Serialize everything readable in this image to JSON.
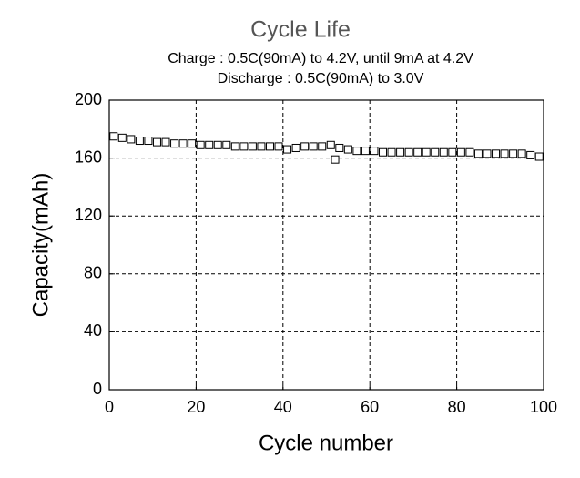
{
  "chart_data": {
    "type": "scatter",
    "title": "Cycle Life",
    "subtitle": [
      "Charge : 0.5C(90mA) to 4.2V, until 9mA at 4.2V",
      "Discharge : 0.5C(90mA) to 3.0V"
    ],
    "x_label": "Cycle number",
    "y_label": "Capacity(mAh)",
    "x": [
      1,
      3,
      5,
      7,
      9,
      11,
      13,
      15,
      17,
      19,
      21,
      23,
      25,
      27,
      29,
      31,
      33,
      35,
      37,
      39,
      41,
      43,
      45,
      47,
      49,
      51,
      52,
      53,
      55,
      57,
      59,
      61,
      63,
      65,
      67,
      69,
      71,
      73,
      75,
      77,
      79,
      81,
      83,
      85,
      87,
      89,
      91,
      93,
      95,
      97,
      99
    ],
    "y": [
      175,
      174,
      173,
      172,
      172,
      171,
      171,
      170,
      170,
      170,
      169,
      169,
      169,
      169,
      168,
      168,
      168,
      168,
      168,
      168,
      166,
      167,
      168,
      168,
      168,
      169,
      159,
      167,
      166,
      165,
      165,
      165,
      164,
      164,
      164,
      164,
      164,
      164,
      164,
      164,
      164,
      164,
      164,
      163,
      163,
      163,
      163,
      163,
      163,
      162,
      161
    ],
    "color": "#000000",
    "marker": "open-square",
    "xlim": [
      0,
      100
    ],
    "xticks": [
      0,
      20,
      40,
      60,
      80,
      100
    ],
    "ylim": [
      0,
      200
    ],
    "yticks": [
      0,
      40,
      80,
      120,
      160,
      200
    ],
    "grid": true
  }
}
